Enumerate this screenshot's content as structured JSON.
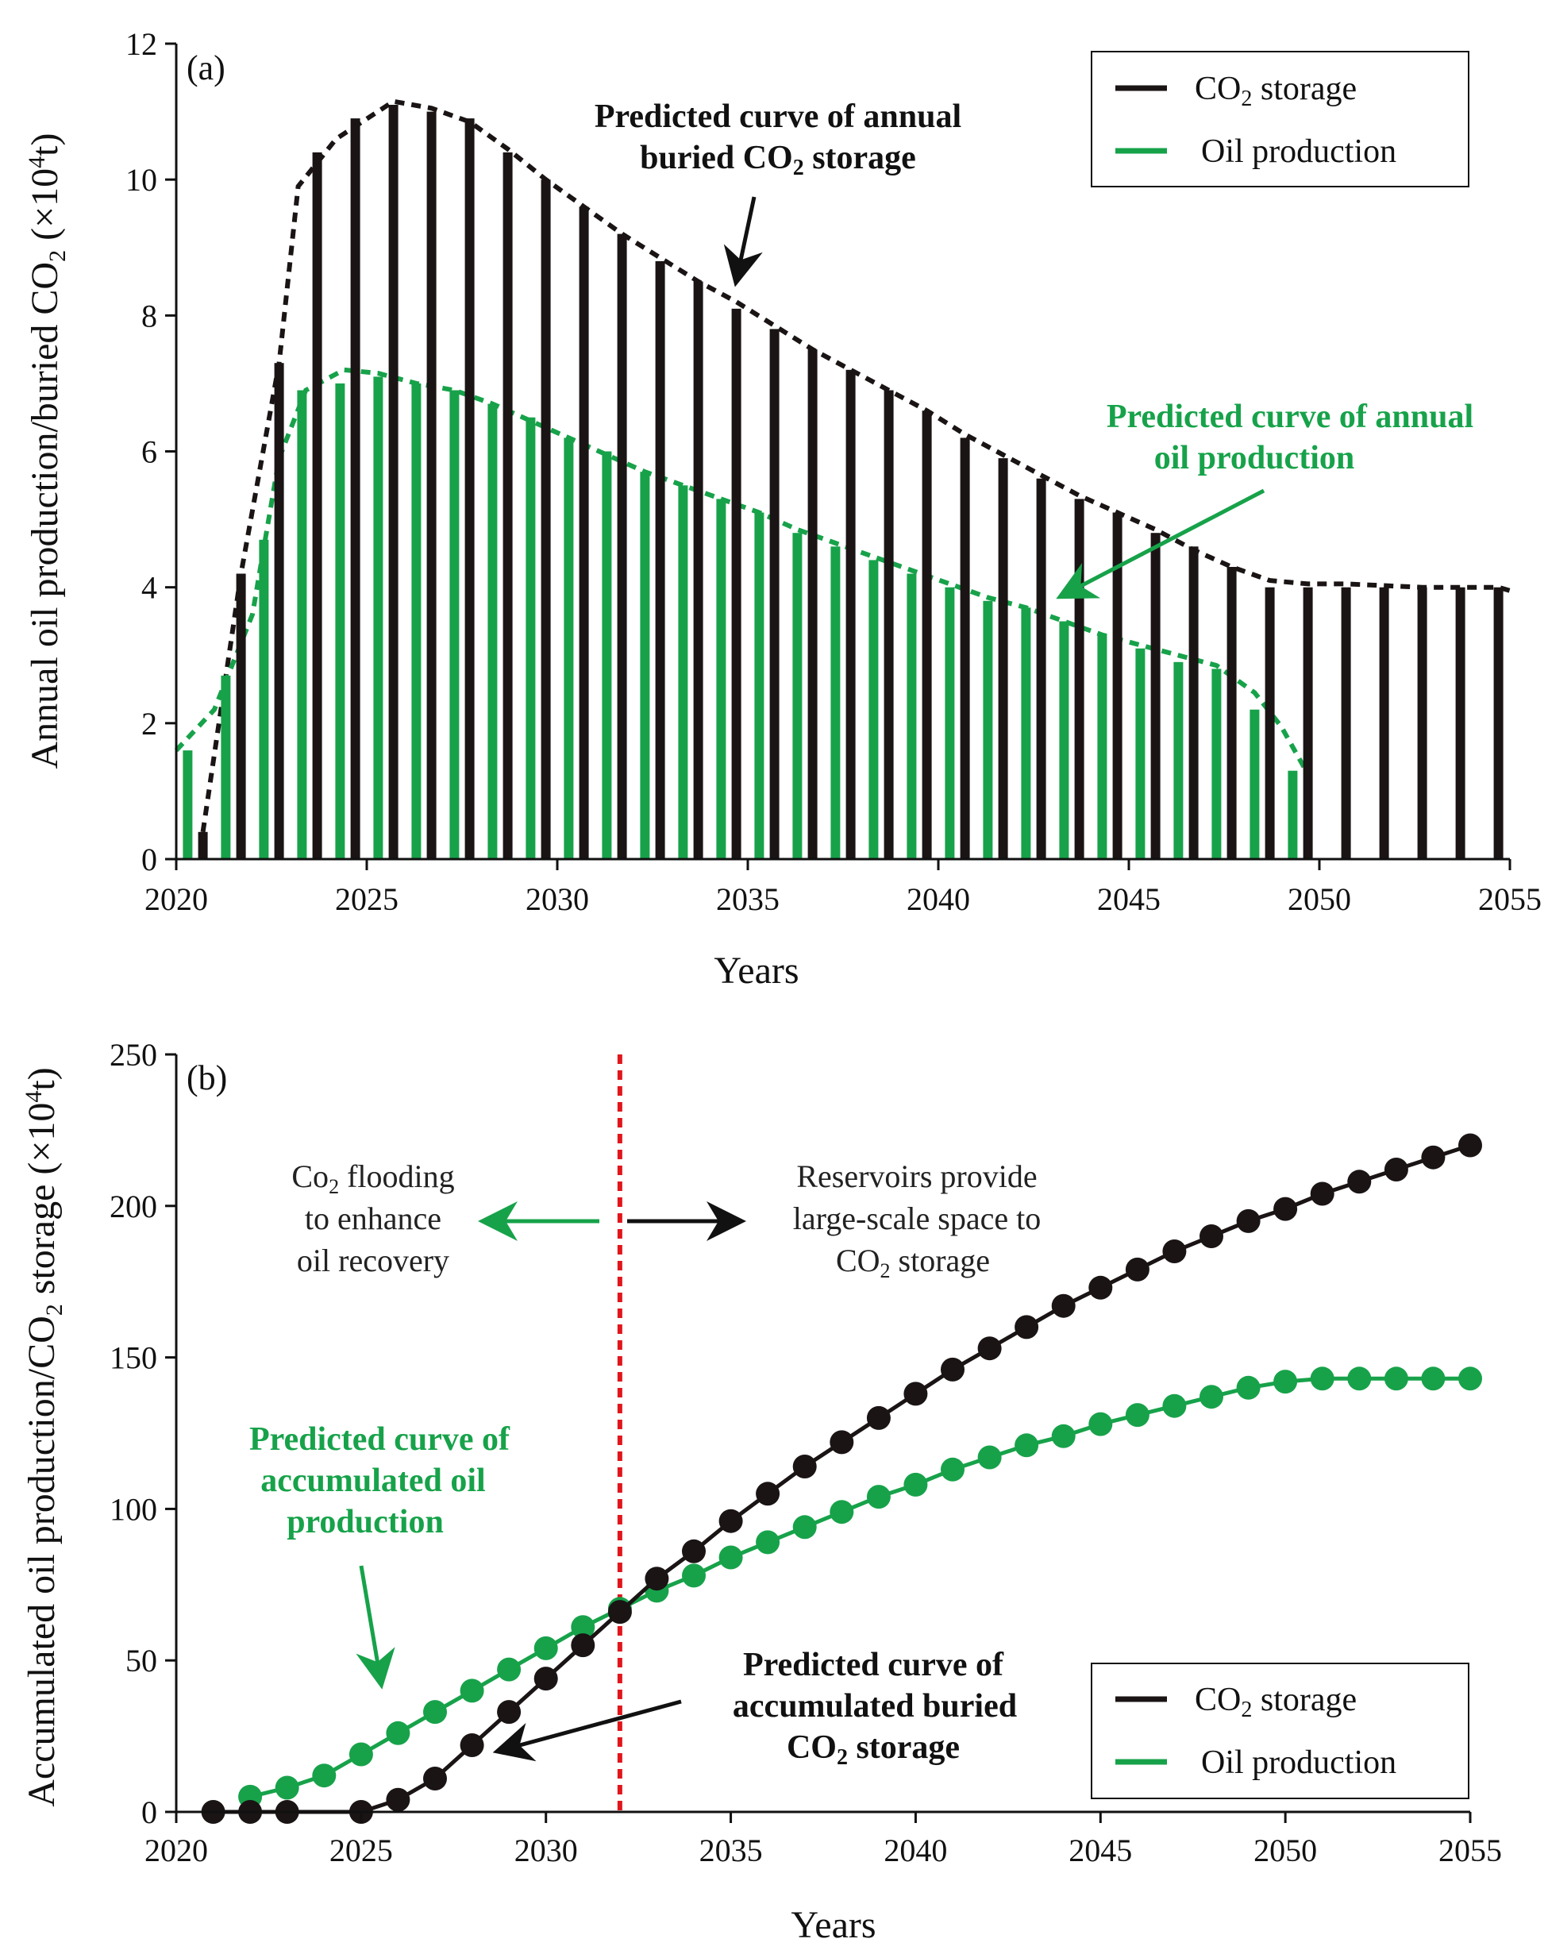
{
  "colors": {
    "co2": "#1a1414",
    "oil": "#17a24a",
    "divider": "#e0161b",
    "axis": "#111111"
  },
  "chart_data": [
    {
      "type": "bar",
      "panel_label": "(a)",
      "xlabel": "Years",
      "ylabel": "Annual oil production/buried CO",
      "ylabel_sub": "2",
      "ylabel_unit": " (×10",
      "ylabel_sup": "4",
      "ylabel_end": "t)",
      "xlim": [
        2020,
        2055
      ],
      "ylim": [
        0,
        12
      ],
      "x_ticks": [
        "2020",
        "2025",
        "2030",
        "2035",
        "2040",
        "2045",
        "2050",
        "2055"
      ],
      "y_ticks": [
        "0",
        "2",
        "4",
        "6",
        "8",
        "10",
        "12"
      ],
      "legend": {
        "co2_pre": "CO",
        "co2_sub": "2",
        "co2_post": " storage",
        "oil": "Oil production"
      },
      "annotations": {
        "co2_line1": "Predicted curve of annual",
        "co2_line2_pre": "buried CO",
        "co2_line2_sub": "2",
        "co2_line2_post": " storage",
        "oil_line1": "Predicted curve of annual",
        "oil_line2": "oil production"
      },
      "series": [
        {
          "name": "CO2 storage",
          "x": [
            2020.7,
            2021.7,
            2022.7,
            2023.7,
            2024.7,
            2025.7,
            2026.7,
            2027.7,
            2028.7,
            2029.7,
            2030.7,
            2031.7,
            2032.7,
            2033.7,
            2034.7,
            2035.7,
            2036.7,
            2037.7,
            2038.7,
            2039.7,
            2040.7,
            2041.7,
            2042.7,
            2043.7,
            2044.7,
            2045.7,
            2046.7,
            2047.7,
            2048.7,
            2049.7,
            2050.7,
            2051.7,
            2052.7,
            2053.7,
            2054.7
          ],
          "values": [
            0.4,
            4.2,
            7.3,
            10.4,
            10.9,
            11.1,
            11.0,
            10.9,
            10.4,
            10.0,
            9.6,
            9.2,
            8.8,
            8.5,
            8.1,
            7.8,
            7.5,
            7.2,
            6.9,
            6.6,
            6.2,
            5.9,
            5.6,
            5.3,
            5.1,
            4.8,
            4.6,
            4.3,
            4.0,
            4.0,
            4.0,
            4.0,
            4.0,
            4.0,
            4.0
          ]
        },
        {
          "name": "Oil production",
          "x": [
            2020.3,
            2021.3,
            2022.3,
            2023.3,
            2024.3,
            2025.3,
            2026.3,
            2027.3,
            2028.3,
            2029.3,
            2030.3,
            2031.3,
            2032.3,
            2033.3,
            2034.3,
            2035.3,
            2036.3,
            2037.3,
            2038.3,
            2039.3,
            2040.3,
            2041.3,
            2042.3,
            2043.3,
            2044.3,
            2045.3,
            2046.3,
            2047.3,
            2048.3,
            2049.3
          ],
          "values": [
            1.6,
            2.7,
            4.7,
            6.9,
            7.0,
            7.1,
            7.0,
            6.9,
            6.7,
            6.5,
            6.2,
            6.0,
            5.7,
            5.5,
            5.3,
            5.1,
            4.8,
            4.6,
            4.4,
            4.2,
            4.0,
            3.8,
            3.7,
            3.5,
            3.3,
            3.1,
            2.9,
            2.8,
            2.2,
            1.3
          ]
        }
      ],
      "trend_curves": [
        {
          "name": "Predicted curve of annual buried CO2 storage",
          "x": [
            2020.7,
            2021.7,
            2022.7,
            2023.2,
            2024.2,
            2025.7,
            2026.7,
            2027.7,
            2028.7,
            2029.7,
            2030.7,
            2031.7,
            2032.7,
            2033.7,
            2034.7,
            2035.7,
            2036.7,
            2037.7,
            2038.7,
            2039.7,
            2040.7,
            2041.7,
            2042.7,
            2043.7,
            2044.7,
            2045.7,
            2046.7,
            2047.7,
            2048.7,
            2049.7,
            2050.7,
            2052.7,
            2054.7,
            2055.0
          ],
          "values": [
            0.4,
            4.2,
            7.3,
            9.9,
            10.6,
            11.15,
            11.05,
            10.85,
            10.45,
            10.0,
            9.6,
            9.2,
            8.85,
            8.5,
            8.2,
            7.85,
            7.5,
            7.2,
            6.9,
            6.6,
            6.25,
            5.95,
            5.65,
            5.35,
            5.1,
            4.85,
            4.55,
            4.3,
            4.1,
            4.05,
            4.05,
            4.0,
            4.0,
            3.95
          ]
        },
        {
          "name": "Predicted curve of annual oil production",
          "x": [
            2020.0,
            2021.0,
            2022.0,
            2022.7,
            2023.4,
            2024.4,
            2025.3,
            2026.3,
            2027.3,
            2028.3,
            2029.3,
            2030.3,
            2031.3,
            2032.3,
            2033.3,
            2034.3,
            2035.3,
            2036.3,
            2037.3,
            2038.3,
            2039.3,
            2040.3,
            2041.3,
            2042.3,
            2043.3,
            2044.3,
            2045.3,
            2046.3,
            2047.3,
            2048.3,
            2049.0,
            2049.6
          ],
          "values": [
            1.6,
            2.2,
            3.6,
            5.9,
            6.9,
            7.2,
            7.15,
            7.0,
            6.9,
            6.7,
            6.45,
            6.2,
            5.95,
            5.7,
            5.5,
            5.3,
            5.1,
            4.85,
            4.65,
            4.45,
            4.25,
            4.05,
            3.85,
            3.7,
            3.5,
            3.3,
            3.15,
            3.0,
            2.85,
            2.45,
            1.95,
            1.35
          ]
        }
      ]
    },
    {
      "type": "line",
      "panel_label": "(b)",
      "xlabel": "Years",
      "ylabel": "Accumulated oil production/CO",
      "ylabel_sub": "2",
      "ylabel_mid": " storage (×10",
      "ylabel_sup": "4",
      "ylabel_end": "t)",
      "xlim": [
        2020,
        2055
      ],
      "ylim": [
        0,
        250
      ],
      "x_ticks": [
        "2020",
        "2025",
        "2030",
        "2035",
        "2040",
        "2045",
        "2050",
        "2055"
      ],
      "y_ticks": [
        "0",
        "50",
        "100",
        "150",
        "200",
        "250"
      ],
      "divider_year": 2032,
      "legend": {
        "co2_pre": "CO",
        "co2_sub": "2",
        "co2_post": " storage",
        "oil": "Oil production"
      },
      "notes": {
        "left1_pre": "Co",
        "left1_sub": "2",
        "left1_post": " flooding",
        "left2": "to enhance",
        "left3": "oil recovery",
        "right1": "Reservoirs provide",
        "right2": "large-scale space to",
        "right3_pre": "CO",
        "right3_sub": "2",
        "right3_post": " storage"
      },
      "annotations": {
        "oil_line1": "Predicted curve of",
        "oil_line2": "accumulated oil",
        "oil_line3": "production",
        "co2_line1": "Predicted curve of",
        "co2_line2": "accumulated buried",
        "co2_line3_pre": "CO",
        "co2_line3_sub": "2",
        "co2_line3_post": " storage"
      },
      "series": [
        {
          "name": "CO2 storage",
          "x": [
            2021,
            2022,
            2023,
            2025,
            2026,
            2027,
            2028,
            2029,
            2030,
            2031,
            2032,
            2033,
            2034,
            2035,
            2036,
            2037,
            2038,
            2039,
            2040,
            2041,
            2042,
            2043,
            2044,
            2045,
            2046,
            2047,
            2048,
            2049,
            2050,
            2051,
            2052,
            2053,
            2054,
            2055
          ],
          "values": [
            0,
            0,
            0,
            0,
            4,
            11,
            22,
            33,
            44,
            55,
            66,
            77,
            86,
            96,
            105,
            114,
            122,
            130,
            138,
            146,
            153,
            160,
            167,
            173,
            179,
            185,
            190,
            195,
            199,
            204,
            208,
            212,
            216,
            220
          ]
        },
        {
          "name": "Oil production",
          "x": [
            2022,
            2023,
            2024,
            2025,
            2026,
            2027,
            2028,
            2029,
            2030,
            2031,
            2032,
            2033,
            2034,
            2035,
            2036,
            2037,
            2038,
            2039,
            2040,
            2041,
            2042,
            2043,
            2044,
            2045,
            2046,
            2047,
            2048,
            2049,
            2050,
            2051,
            2052,
            2053,
            2054,
            2055
          ],
          "values": [
            5,
            8,
            12,
            19,
            26,
            33,
            40,
            47,
            54,
            61,
            67,
            73,
            78,
            84,
            89,
            94,
            99,
            104,
            108,
            113,
            117,
            121,
            124,
            128,
            131,
            134,
            137,
            140,
            142,
            143,
            143,
            143,
            143,
            143
          ]
        }
      ]
    }
  ]
}
